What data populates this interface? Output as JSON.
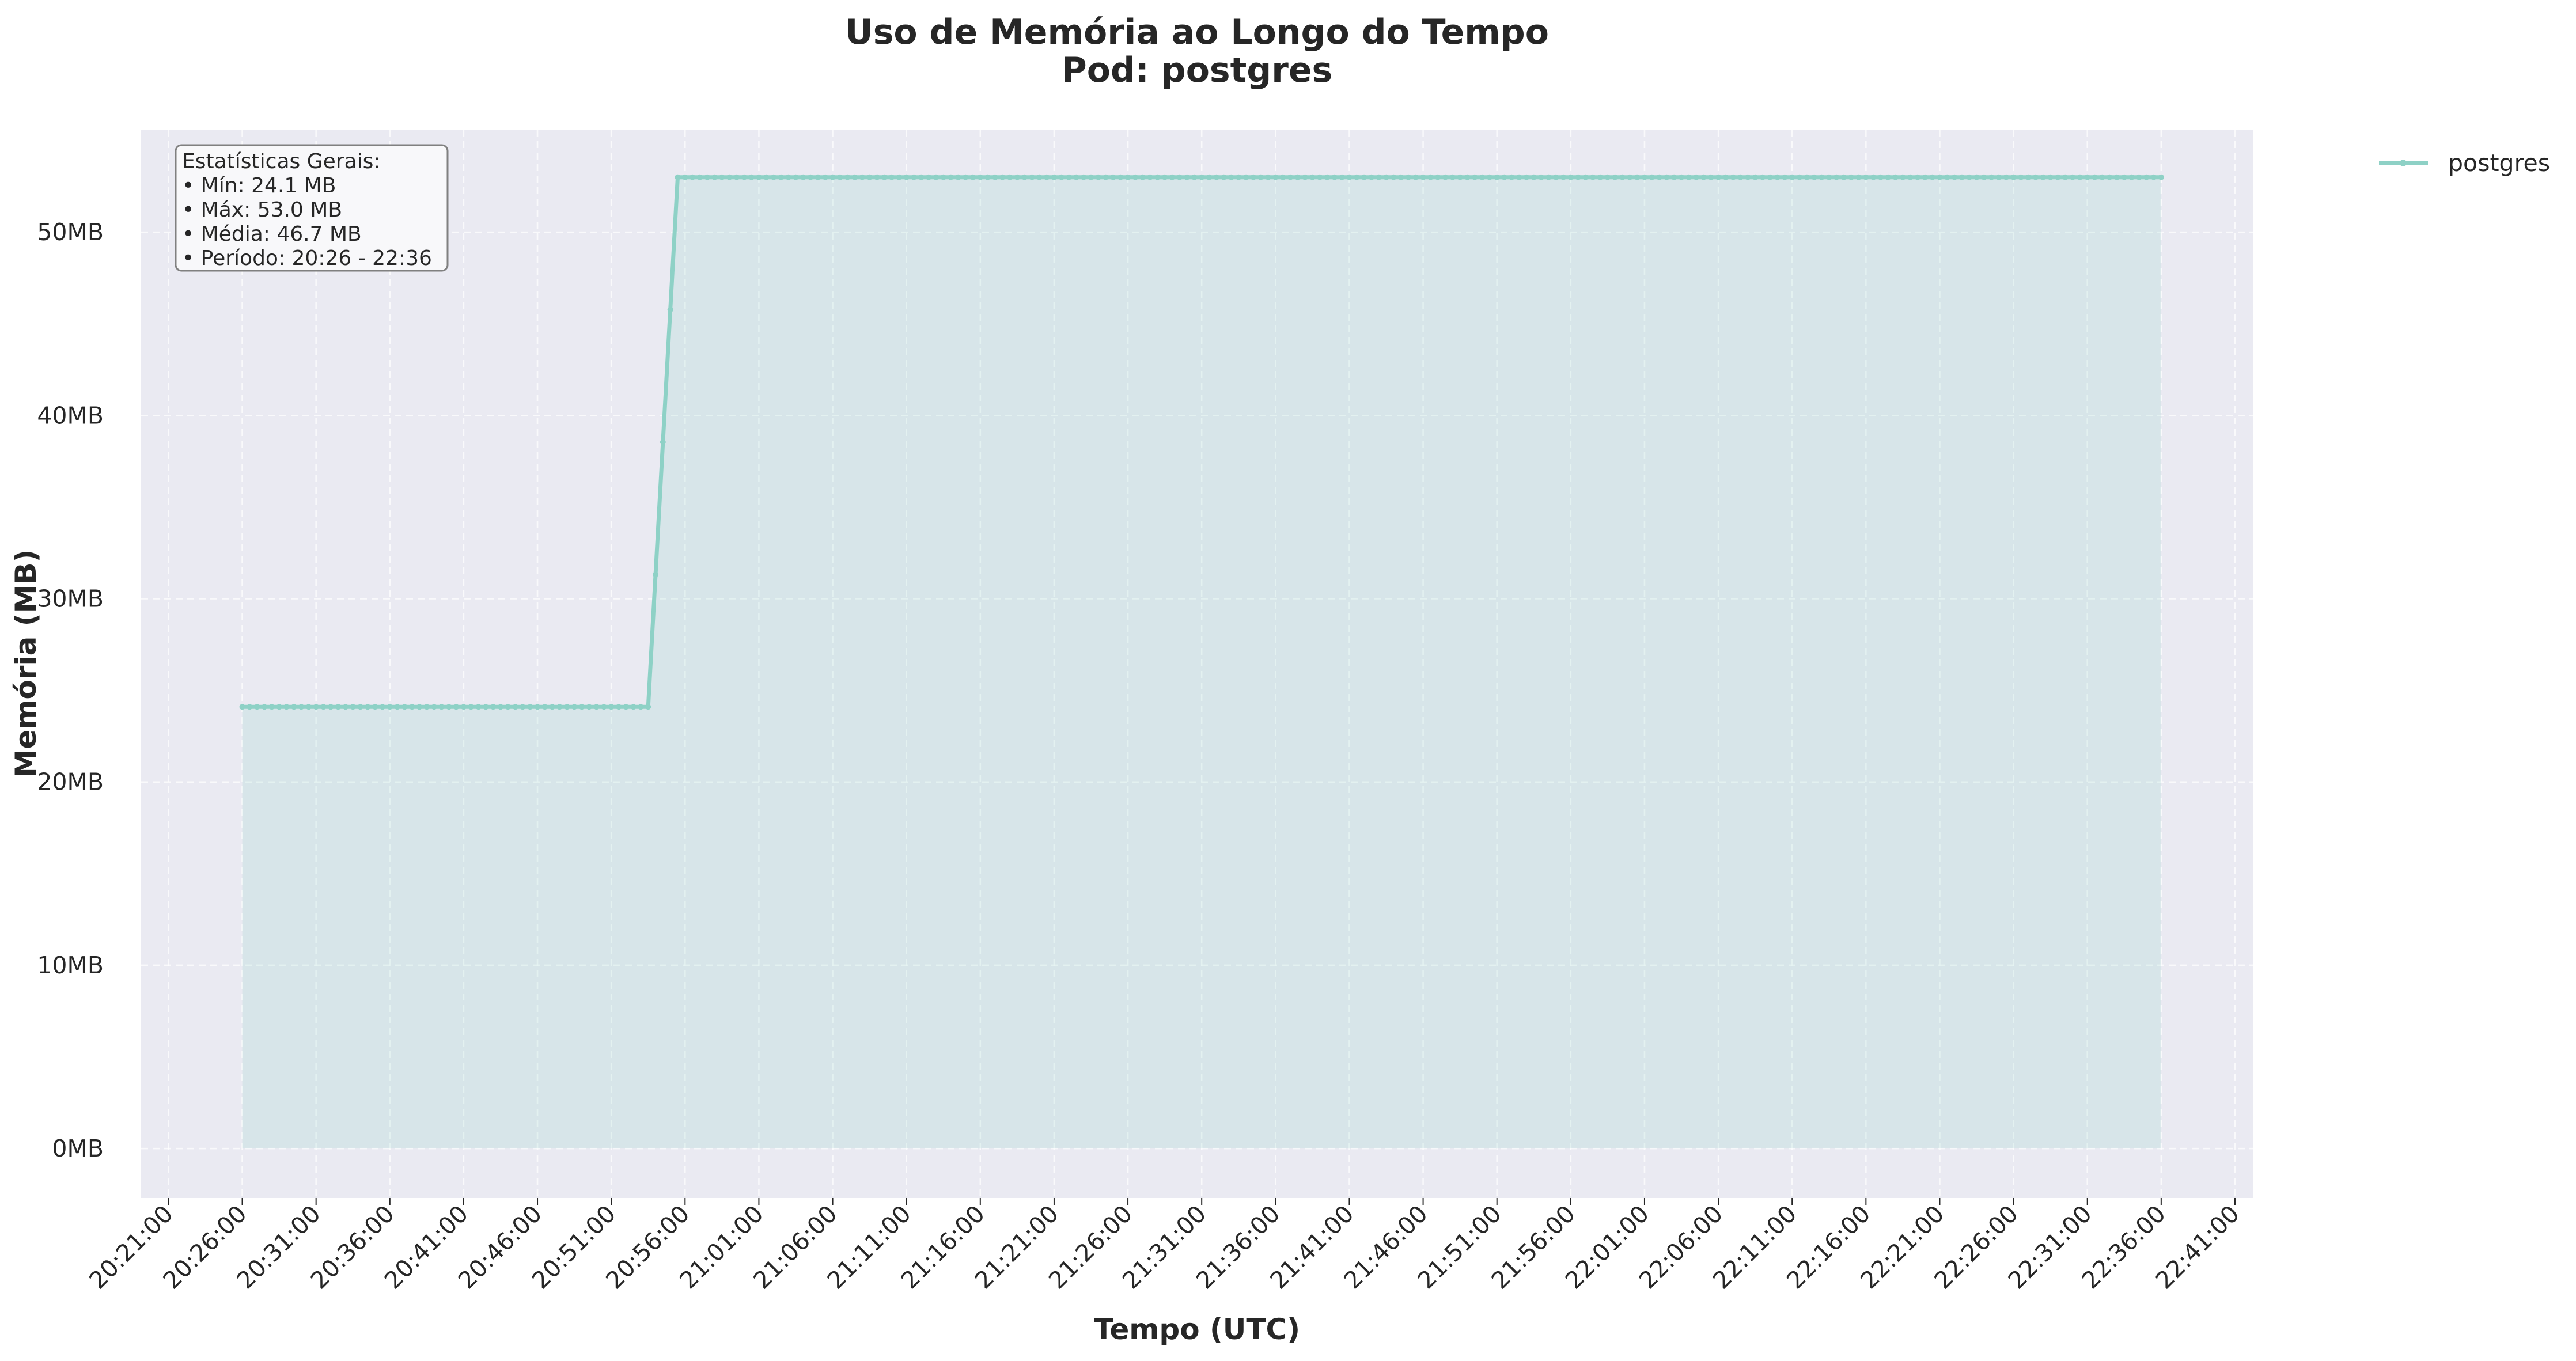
{
  "chart_data": {
    "type": "line",
    "title_line1": "Uso de Memória ao Longo do Tempo",
    "title_line2": "Pod: postgres",
    "xlabel": "Tempo (UTC)",
    "ylabel": "Memória (MB)",
    "x_unit": "UTC time",
    "y_unit": "MB",
    "ylim": [
      -2.7,
      55.6
    ],
    "xlim": [
      "20:19:09",
      "22:42:15"
    ],
    "ytick_values": [
      0,
      10,
      20,
      30,
      40,
      50
    ],
    "ytick_labels": [
      "0MB",
      "10MB",
      "20MB",
      "30MB",
      "40MB",
      "50MB"
    ],
    "xtick_labels": [
      "20:21:00",
      "20:26:00",
      "20:31:00",
      "20:36:00",
      "20:41:00",
      "20:46:00",
      "20:51:00",
      "20:56:00",
      "21:01:00",
      "21:06:00",
      "21:11:00",
      "21:16:00",
      "21:21:00",
      "21:26:00",
      "21:31:00",
      "21:36:00",
      "21:41:00",
      "21:46:00",
      "21:51:00",
      "21:56:00",
      "22:01:00",
      "22:06:00",
      "22:11:00",
      "22:16:00",
      "22:21:00",
      "22:26:00",
      "22:31:00",
      "22:36:00",
      "22:41:00"
    ],
    "grid": true,
    "legend_position": "outside-top-right",
    "series": [
      {
        "name": "postgres",
        "color": "#8ed1c6",
        "fill": true,
        "sample_interval_seconds": 30,
        "points": [
          {
            "x": "20:26:00",
            "y": 24.1
          },
          {
            "x": "20:53:30",
            "y": 24.1
          },
          {
            "x": "20:55:30",
            "y": 53.0
          },
          {
            "x": "22:36:00",
            "y": 53.0
          }
        ]
      }
    ],
    "stats_box": {
      "heading": "Estatísticas Gerais:",
      "lines": [
        "• Mín: 24.1 MB",
        "• Máx: 53.0 MB",
        "• Média: 46.7 MB",
        "• Período: 20:26 - 22:36"
      ]
    },
    "colors": {
      "plot_background": "#eaeaf2",
      "grid": "#ffffff",
      "text": "#262626"
    }
  }
}
